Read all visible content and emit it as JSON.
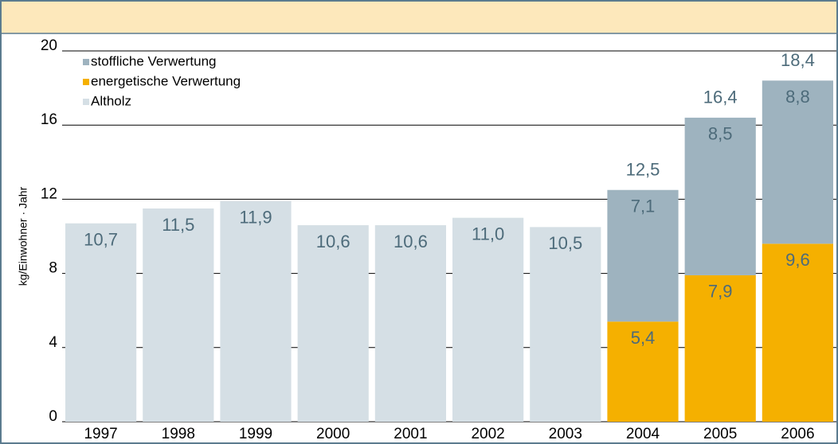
{
  "chart_data": {
    "type": "bar",
    "stacked": true,
    "y_label": "kg/Einwohner · Jahr",
    "categories": [
      "1997",
      "1998",
      "1999",
      "2000",
      "2001",
      "2002",
      "2003",
      "2004",
      "2005",
      "2006"
    ],
    "series": [
      {
        "name": "Altholz",
        "color": "#d5dfe5",
        "values": [
          10.7,
          11.5,
          11.9,
          10.6,
          10.6,
          11.0,
          10.5,
          null,
          null,
          null
        ],
        "value_labels": [
          "10,7",
          "11,5",
          "11,9",
          "10,6",
          "10,6",
          "11,0",
          "10,5",
          null,
          null,
          null
        ]
      },
      {
        "name": "energetische Verwertung",
        "color": "#f5b000",
        "values": [
          null,
          null,
          null,
          null,
          null,
          null,
          null,
          5.4,
          7.9,
          9.6
        ],
        "value_labels": [
          null,
          null,
          null,
          null,
          null,
          null,
          null,
          "5,4",
          "7,9",
          "9,6"
        ]
      },
      {
        "name": "stoffliche Verwertung",
        "color": "#9eb3bf",
        "values": [
          null,
          null,
          null,
          null,
          null,
          null,
          null,
          7.1,
          8.5,
          8.8
        ],
        "value_labels": [
          null,
          null,
          null,
          null,
          null,
          null,
          null,
          "7,1",
          "8,5",
          "8,8"
        ]
      }
    ],
    "totals": [
      null,
      null,
      null,
      null,
      null,
      null,
      null,
      12.5,
      16.4,
      18.4
    ],
    "totals_labels": [
      null,
      null,
      null,
      null,
      null,
      null,
      null,
      "12,5",
      "16,4",
      "18,4"
    ],
    "ylim": [
      0,
      20
    ],
    "yticks": [
      0,
      4,
      8,
      12,
      16,
      20
    ],
    "grid": true,
    "legend": "top-left"
  }
}
